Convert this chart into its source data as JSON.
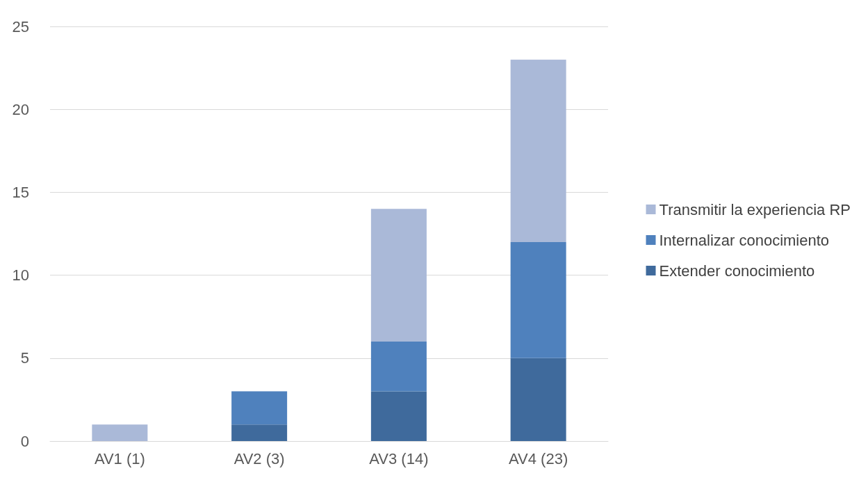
{
  "chart_data": {
    "type": "bar",
    "stacked": true,
    "categories": [
      "AV1 (1)",
      "AV2 (3)",
      "AV3 (14)",
      "AV4 (23)"
    ],
    "series": [
      {
        "name": "Extender conocimiento",
        "color": "#3f6a9c",
        "values": [
          0,
          1,
          3,
          5
        ]
      },
      {
        "name": "Internalizar conocimiento",
        "color": "#4f81bd",
        "values": [
          0,
          2,
          3,
          7
        ]
      },
      {
        "name": "Transmitir la experiencia RP",
        "color": "#aab9d8",
        "values": [
          1,
          0,
          8,
          11
        ]
      }
    ],
    "ylim": [
      0,
      25
    ],
    "yticks": [
      0,
      5,
      10,
      15,
      20,
      25
    ],
    "grid": "y",
    "legend": "right"
  }
}
